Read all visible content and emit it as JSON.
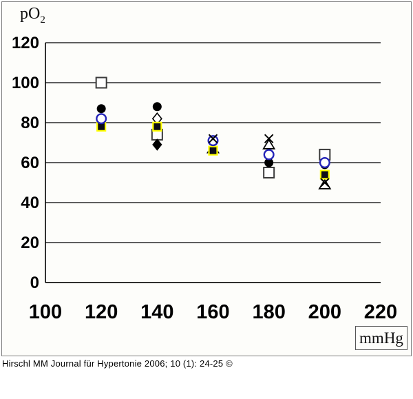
{
  "figure": {
    "y_axis_title_main": "pO",
    "y_axis_title_sub": "2",
    "x_axis_unit": "mmHg",
    "caption": "Hirschl MM Journal für Hypertonie 2006; 10 (1): 24-25 ©"
  },
  "chart_data": {
    "type": "scatter",
    "title": "",
    "xlabel": "mmHg",
    "ylabel": "pO2",
    "xlim": [
      100,
      220
    ],
    "ylim": [
      0,
      120
    ],
    "x_ticks": [
      100,
      120,
      140,
      160,
      180,
      200,
      220
    ],
    "y_ticks": [
      0,
      20,
      40,
      60,
      80,
      100,
      120
    ],
    "grid": "horizontal-only",
    "legend": "none",
    "colors": {
      "grid": "#000000",
      "open_circle_stroke": "#2323b8",
      "filled_square_edge": "#ffff00",
      "marker_black": "#000000",
      "open_square_stroke": "#3a3a3a"
    },
    "series": [
      {
        "name": "open square",
        "marker": "square-open",
        "points": [
          [
            120,
            100
          ],
          [
            140,
            74
          ],
          [
            180,
            55
          ],
          [
            200,
            64
          ]
        ]
      },
      {
        "name": "open diamond",
        "marker": "diamond-open",
        "points": [
          [
            140,
            82
          ]
        ]
      },
      {
        "name": "filled diamond",
        "marker": "diamond-filled",
        "points": [
          [
            140,
            69
          ]
        ]
      },
      {
        "name": "open triangle",
        "marker": "triangle-open",
        "points": [
          [
            160,
            67
          ],
          [
            180,
            69
          ],
          [
            200,
            49
          ]
        ]
      },
      {
        "name": "filled square yellow edge",
        "marker": "square-filled",
        "points": [
          [
            120,
            78
          ],
          [
            140,
            78
          ],
          [
            160,
            66
          ],
          [
            200,
            54
          ]
        ]
      },
      {
        "name": "filled circle",
        "marker": "circle-filled",
        "points": [
          [
            120,
            87
          ],
          [
            140,
            88
          ],
          [
            180,
            60
          ],
          [
            200,
            59
          ]
        ]
      },
      {
        "name": "open circle blue",
        "marker": "circle-open",
        "points": [
          [
            120,
            82
          ],
          [
            160,
            71
          ],
          [
            180,
            64
          ],
          [
            200,
            60
          ]
        ]
      },
      {
        "name": "x cross",
        "marker": "x-cross",
        "points": [
          [
            160,
            72
          ],
          [
            180,
            72
          ],
          [
            200,
            50
          ]
        ]
      }
    ]
  }
}
